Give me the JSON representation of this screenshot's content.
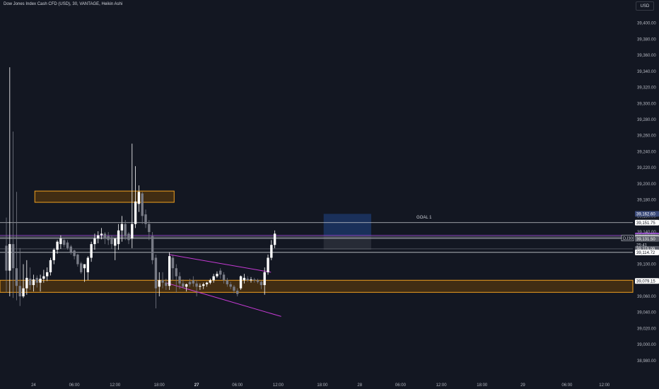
{
  "header": {
    "symbol_title": "Dow Jones Index Cash CFD (USD), 30, VANTAGE, Heikin Ashi",
    "currency": "USD"
  },
  "colors": {
    "background": "#131722",
    "axis_text": "#b2b5be",
    "bull_candle": "#ffffff",
    "bear_candle": "#787b86",
    "zone_stroke": "#f0a020",
    "zone_fill": "#4a3110",
    "channel_line": "#c53ad4",
    "target_box": "#1e3a6e",
    "risk_box": "#2a2e39",
    "level_line": "#c8cad0",
    "purple_line": "#9c4ad4"
  },
  "chart_data": {
    "type": "candlestick",
    "title": "Dow Jones Index Cash CFD (USD), 30, VANTAGE, Heikin Ashi",
    "y_axis": {
      "range": [
        38972,
        39412
      ],
      "ticks": [
        39400,
        39380,
        39360,
        39340,
        39320,
        39300,
        39280,
        39260,
        39240,
        39220,
        39200,
        39180,
        39160,
        39140,
        39120,
        39100,
        39080,
        39060,
        39040,
        39020,
        39000,
        38980
      ],
      "tick_labels": [
        "39,400.00",
        "39,380.00",
        "39,360.00",
        "39,340.00",
        "39,320.00",
        "39,300.00",
        "39,280.00",
        "39,260.00",
        "39,240.00",
        "39,220.00",
        "39,200.00",
        "39,180.00",
        "39,160.00",
        "39,140.00",
        "39,120.00",
        "39,100.00",
        "39,080.00",
        "39,060.00",
        "39,040.00",
        "39,020.00",
        "39,000.00",
        "38,980.00"
      ]
    },
    "x_axis": {
      "range": [
        0,
        185
      ],
      "ticks": [
        8,
        20,
        32,
        45,
        56,
        68,
        80,
        93,
        104,
        116,
        128,
        140,
        152,
        165,
        176
      ],
      "tick_labels": [
        "24",
        "06:00",
        "12:00",
        "18:00",
        "27",
        "06:00",
        "12:00",
        "18:00",
        "28",
        "06:00",
        "12:00",
        "18:00",
        "29",
        "06:00",
        "12:00"
      ]
    },
    "candles": [
      {
        "o": 39123,
        "h": 39158,
        "l": 39065,
        "c": 39092
      },
      {
        "o": 39092,
        "h": 39345,
        "l": 39060,
        "c": 39125
      },
      {
        "o": 39125,
        "h": 39265,
        "l": 39058,
        "c": 39095
      },
      {
        "o": 39095,
        "h": 39190,
        "l": 39055,
        "c": 39073
      },
      {
        "o": 39073,
        "h": 39120,
        "l": 39048,
        "c": 39060
      },
      {
        "o": 39060,
        "h": 39100,
        "l": 39058,
        "c": 39070
      },
      {
        "o": 39070,
        "h": 39105,
        "l": 39062,
        "c": 39083
      },
      {
        "o": 39082,
        "h": 39096,
        "l": 39068,
        "c": 39074
      },
      {
        "o": 39074,
        "h": 39087,
        "l": 39066,
        "c": 39081
      },
      {
        "o": 39083,
        "h": 39086,
        "l": 39071,
        "c": 39077
      },
      {
        "o": 39077,
        "h": 39087,
        "l": 39066,
        "c": 39082
      },
      {
        "o": 39082,
        "h": 39093,
        "l": 39077,
        "c": 39085
      },
      {
        "o": 39085,
        "h": 39096,
        "l": 39079,
        "c": 39090
      },
      {
        "o": 39090,
        "h": 39108,
        "l": 39086,
        "c": 39105
      },
      {
        "o": 39105,
        "h": 39120,
        "l": 39100,
        "c": 39118
      },
      {
        "o": 39118,
        "h": 39130,
        "l": 39113,
        "c": 39128
      },
      {
        "o": 39125,
        "h": 39136,
        "l": 39119,
        "c": 39132
      },
      {
        "o": 39130,
        "h": 39132,
        "l": 39121,
        "c": 39124
      },
      {
        "o": 39127,
        "h": 39130,
        "l": 39118,
        "c": 39120
      },
      {
        "o": 39122,
        "h": 39124,
        "l": 39112,
        "c": 39115
      },
      {
        "o": 39117,
        "h": 39118,
        "l": 39106,
        "c": 39110
      },
      {
        "o": 39112,
        "h": 39113,
        "l": 39097,
        "c": 39100
      },
      {
        "o": 39101,
        "h": 39103,
        "l": 39088,
        "c": 39090
      },
      {
        "o": 39095,
        "h": 39099,
        "l": 39078,
        "c": 39100
      },
      {
        "o": 39090,
        "h": 39110,
        "l": 39080,
        "c": 39108
      },
      {
        "o": 39108,
        "h": 39128,
        "l": 39103,
        "c": 39125
      },
      {
        "o": 39125,
        "h": 39138,
        "l": 39118,
        "c": 39132
      },
      {
        "o": 39132,
        "h": 39141,
        "l": 39126,
        "c": 39136
      },
      {
        "o": 39136,
        "h": 39145,
        "l": 39131,
        "c": 39138
      },
      {
        "o": 39138,
        "h": 39140,
        "l": 39125,
        "c": 39132
      },
      {
        "o": 39135,
        "h": 39140,
        "l": 39124,
        "c": 39130
      },
      {
        "o": 39132,
        "h": 39136,
        "l": 39119,
        "c": 39125
      },
      {
        "o": 39123,
        "h": 39128,
        "l": 39105,
        "c": 39132
      },
      {
        "o": 39125,
        "h": 39150,
        "l": 39118,
        "c": 39142
      },
      {
        "o": 39142,
        "h": 39160,
        "l": 39128,
        "c": 39150
      },
      {
        "o": 39150,
        "h": 39155,
        "l": 39130,
        "c": 39135
      },
      {
        "o": 39138,
        "h": 39140,
        "l": 39125,
        "c": 39130
      },
      {
        "o": 39132,
        "h": 39250,
        "l": 39120,
        "c": 39150
      },
      {
        "o": 39150,
        "h": 39222,
        "l": 39145,
        "c": 39178
      },
      {
        "o": 39175,
        "h": 39198,
        "l": 39165,
        "c": 39190
      },
      {
        "o": 39188,
        "h": 39190,
        "l": 39150,
        "c": 39160
      },
      {
        "o": 39162,
        "h": 39168,
        "l": 39145,
        "c": 39150
      },
      {
        "o": 39150,
        "h": 39155,
        "l": 39130,
        "c": 39140
      },
      {
        "o": 39135,
        "h": 39140,
        "l": 39100,
        "c": 39105
      },
      {
        "o": 39108,
        "h": 39112,
        "l": 39045,
        "c": 39070
      },
      {
        "o": 39072,
        "h": 39090,
        "l": 39060,
        "c": 39080
      },
      {
        "o": 39080,
        "h": 39090,
        "l": 39070,
        "c": 39077
      },
      {
        "o": 39077,
        "h": 39082,
        "l": 39068,
        "c": 39073
      },
      {
        "o": 39073,
        "h": 39115,
        "l": 39068,
        "c": 39110
      },
      {
        "o": 39108,
        "h": 39111,
        "l": 39080,
        "c": 39095
      },
      {
        "o": 39095,
        "h": 39100,
        "l": 39065,
        "c": 39085
      },
      {
        "o": 39085,
        "h": 39090,
        "l": 39069,
        "c": 39076
      },
      {
        "o": 39076,
        "h": 39081,
        "l": 39070,
        "c": 39072
      },
      {
        "o": 39072,
        "h": 39076,
        "l": 39066,
        "c": 39075
      },
      {
        "o": 39078,
        "h": 39082,
        "l": 39072,
        "c": 39075
      },
      {
        "o": 39080,
        "h": 39085,
        "l": 39072,
        "c": 39076
      },
      {
        "o": 39076,
        "h": 39080,
        "l": 39060,
        "c": 39072
      },
      {
        "o": 39072,
        "h": 39076,
        "l": 39068,
        "c": 39073
      },
      {
        "o": 39073,
        "h": 39077,
        "l": 39069,
        "c": 39075
      },
      {
        "o": 39075,
        "h": 39078,
        "l": 39072,
        "c": 39077
      },
      {
        "o": 39077,
        "h": 39082,
        "l": 39075,
        "c": 39080
      },
      {
        "o": 39080,
        "h": 39088,
        "l": 39077,
        "c": 39085
      },
      {
        "o": 39085,
        "h": 39091,
        "l": 39083,
        "c": 39088
      },
      {
        "o": 39092,
        "h": 39095,
        "l": 39082,
        "c": 39087
      },
      {
        "o": 39087,
        "h": 39090,
        "l": 39076,
        "c": 39080
      },
      {
        "o": 39080,
        "h": 39083,
        "l": 39072,
        "c": 39075
      },
      {
        "o": 39075,
        "h": 39078,
        "l": 39069,
        "c": 39072
      },
      {
        "o": 39072,
        "h": 39074,
        "l": 39064,
        "c": 39067
      },
      {
        "o": 39067,
        "h": 39070,
        "l": 39060,
        "c": 39063
      },
      {
        "o": 39070,
        "h": 39086,
        "l": 39068,
        "c": 39085
      },
      {
        "o": 39080,
        "h": 39088,
        "l": 39076,
        "c": 39083
      },
      {
        "o": 39082,
        "h": 39085,
        "l": 39078,
        "c": 39080
      },
      {
        "o": 39080,
        "h": 39084,
        "l": 39077,
        "c": 39081
      },
      {
        "o": 39081,
        "h": 39083,
        "l": 39077,
        "c": 39080
      },
      {
        "o": 39080,
        "h": 39082,
        "l": 39076,
        "c": 39078
      },
      {
        "o": 39078,
        "h": 39080,
        "l": 39069,
        "c": 39074
      },
      {
        "o": 39074,
        "h": 39096,
        "l": 39062,
        "c": 39090
      },
      {
        "o": 39090,
        "h": 39112,
        "l": 39087,
        "c": 39108
      },
      {
        "o": 39108,
        "h": 39130,
        "l": 39105,
        "c": 39124
      },
      {
        "o": 39124,
        "h": 39142,
        "l": 39120,
        "c": 39138
      }
    ],
    "horizontal_levels": [
      {
        "price": 39162.6,
        "label": "39,162.60",
        "style": "target"
      },
      {
        "price": 39151.75,
        "label": "39,151.75",
        "style": "line"
      },
      {
        "price": 39135.73,
        "label": "39,135.73",
        "style": "purple"
      },
      {
        "price": 39134.09,
        "label": "39,134.09",
        "style": "gray"
      },
      {
        "price": 39132.5,
        "label": "39,132.50",
        "style": "line"
      },
      {
        "price": 39131.5,
        "label": "39,131.50",
        "style": "gray"
      },
      {
        "price": 39119.09,
        "label": "39,119.09",
        "style": "gray"
      },
      {
        "price": 39114.72,
        "label": "39,114.72",
        "style": "line"
      },
      {
        "price": 39079.15,
        "label": "39,079.15",
        "style": "zone"
      }
    ],
    "countdown_label": "25:41",
    "symbol_tag": "DJ30",
    "zones": [
      {
        "x_from": 9,
        "x_to": 50,
        "y_low": 39177,
        "y_high": 39191
      },
      {
        "x_from": 0,
        "x_to": 185,
        "y_low": 39065,
        "y_high": 39080
      }
    ],
    "annotations": [
      {
        "type": "text",
        "text": "GOAL 1",
        "x": 113,
        "y": 39157
      }
    ],
    "position_box": {
      "x_from": 94,
      "x_to": 108,
      "entry": 39135,
      "target": 39162.6,
      "stop": 39118
    }
  }
}
